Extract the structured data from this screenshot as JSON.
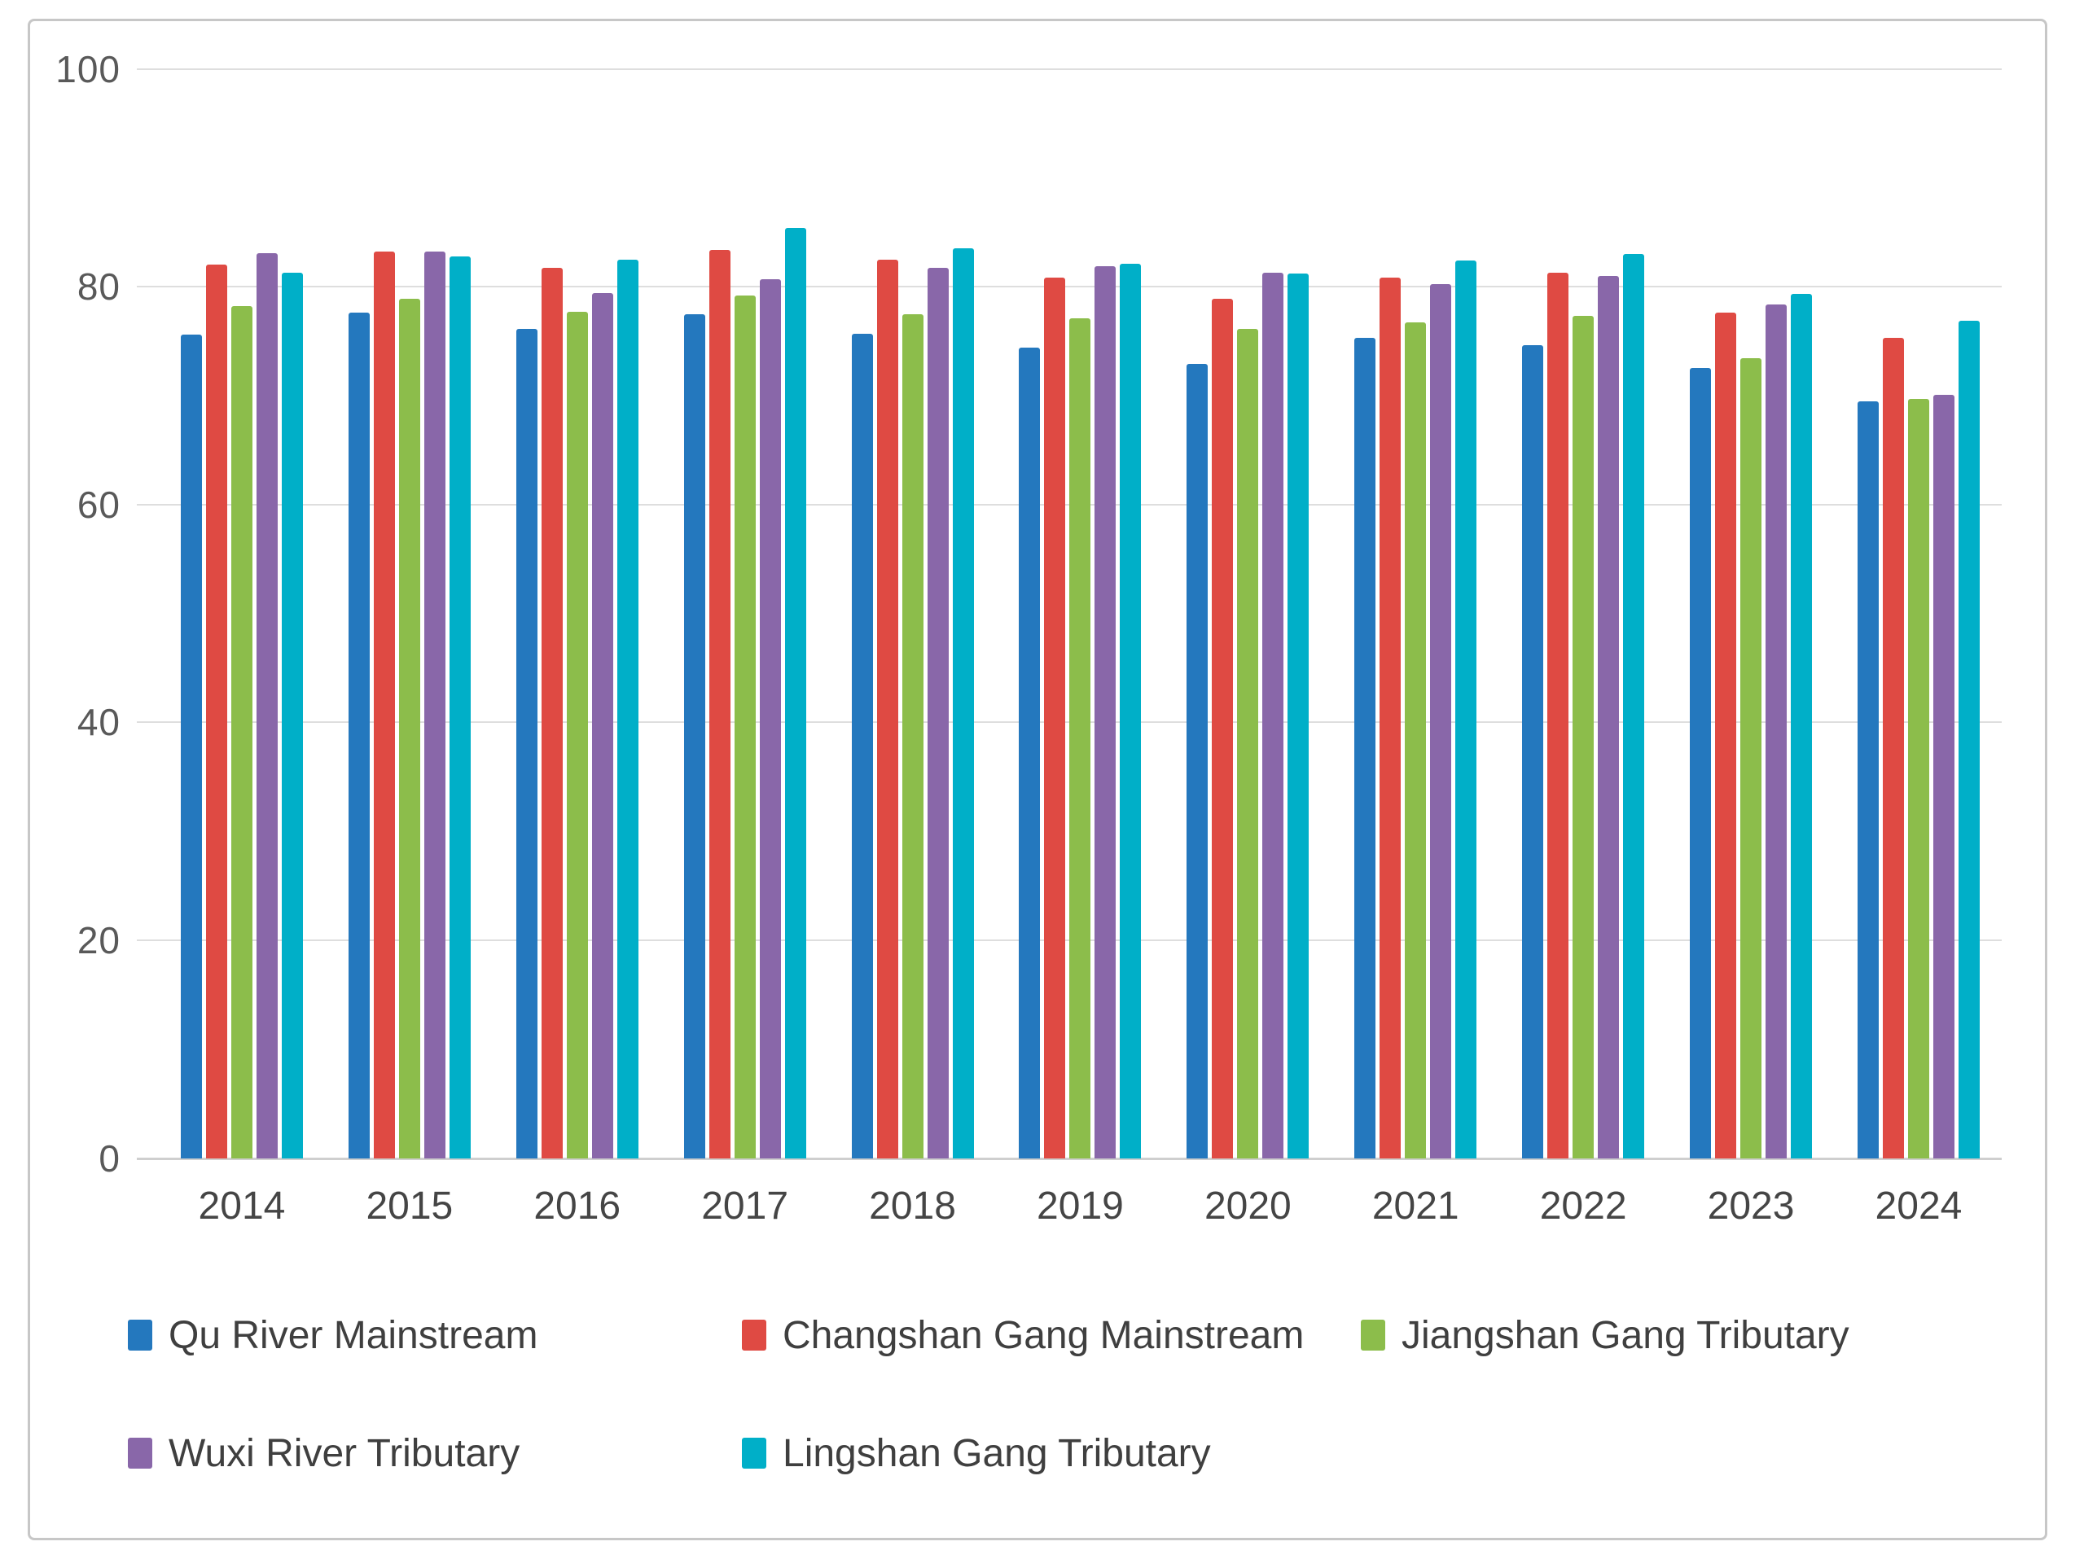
{
  "figure": {
    "background": "#ffffff",
    "border_color": "#c7c7c7"
  },
  "chart_data": {
    "type": "bar",
    "title": "",
    "xlabel": "",
    "ylabel": "",
    "categories": [
      "2014",
      "2015",
      "2016",
      "2017",
      "2018",
      "2019",
      "2020",
      "2021",
      "2022",
      "2023",
      "2024"
    ],
    "series": [
      {
        "name": "Qu River Mainstream",
        "color": "#2478be",
        "values": [
          75.6,
          77.6,
          76.1,
          77.5,
          75.7,
          74.4,
          72.9,
          75.3,
          74.6,
          72.5,
          69.5
        ]
      },
      {
        "name": "Changshan Gang Mainstream",
        "color": "#df4a43",
        "values": [
          82.0,
          83.2,
          81.7,
          83.4,
          82.5,
          80.8,
          78.9,
          80.8,
          81.3,
          77.6,
          75.3
        ]
      },
      {
        "name": "Jiangshan Gang Tributary",
        "color": "#8cbd4b",
        "values": [
          78.2,
          78.9,
          77.7,
          79.2,
          77.5,
          77.1,
          76.1,
          76.7,
          77.3,
          73.4,
          69.7
        ]
      },
      {
        "name": "Wuxi River Tributary",
        "color": "#8967a9",
        "values": [
          83.1,
          83.2,
          79.4,
          80.7,
          81.7,
          81.9,
          81.3,
          80.2,
          81.0,
          78.4,
          70.1
        ]
      },
      {
        "name": "Lingshan Gang Tributary",
        "color": "#00afc8",
        "values": [
          81.3,
          82.8,
          82.5,
          85.4,
          83.5,
          82.1,
          81.2,
          82.4,
          83.0,
          79.3,
          76.9
        ]
      }
    ],
    "ylim": [
      0,
      100
    ],
    "yticks": [
      0,
      20,
      40,
      60,
      80,
      100
    ],
    "grid": true,
    "gridline_color": "#dedede",
    "legend_position": "bottom"
  }
}
